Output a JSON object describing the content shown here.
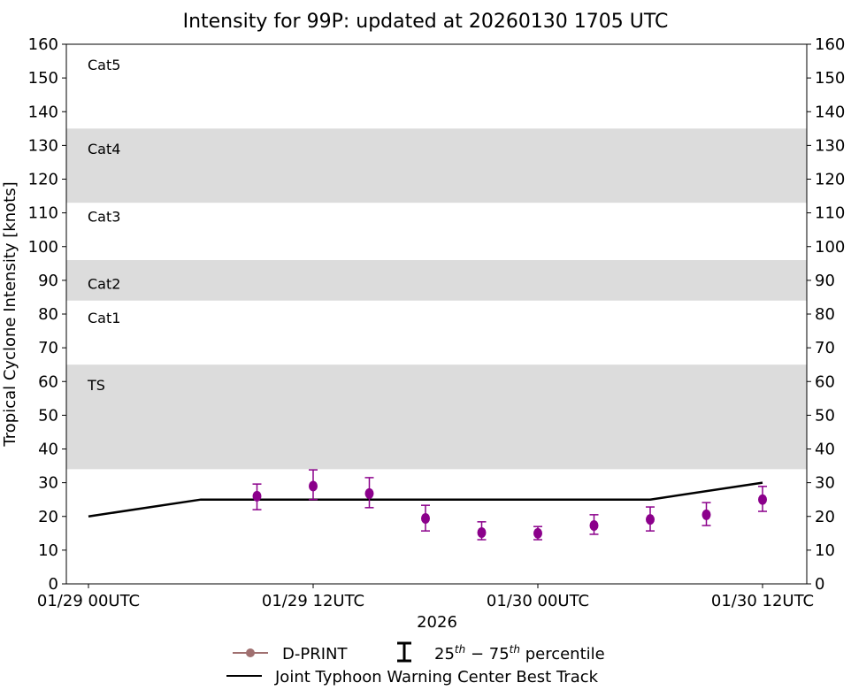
{
  "chart_data": {
    "type": "line",
    "title": "Intensity for 99P: updated at 20260130 1705 UTC",
    "xlabel": "2026",
    "ylabel": "Tropical Cyclone Intensity [knots]",
    "ylim": [
      0,
      160
    ],
    "yticks": [
      0,
      10,
      20,
      30,
      40,
      50,
      60,
      70,
      80,
      90,
      100,
      110,
      120,
      130,
      140,
      150,
      160
    ],
    "xlim_hours": [
      -6,
      38
    ],
    "xticks": [
      {
        "hour": 0,
        "label": "01/29 00UTC"
      },
      {
        "hour": 12,
        "label": "01/29 12UTC"
      },
      {
        "hour": 24,
        "label": "01/30 00UTC"
      },
      {
        "hour": 36,
        "label": "01/30 12UTC"
      }
    ],
    "grid": false,
    "bands": [
      {
        "from": 34,
        "to": 65,
        "color": "#dcdcdc"
      },
      {
        "from": 84,
        "to": 96,
        "color": "#dcdcdc"
      },
      {
        "from": 113,
        "to": 135,
        "color": "#dcdcdc"
      }
    ],
    "category_labels": [
      {
        "label": "Cat5",
        "y": 154
      },
      {
        "label": "Cat4",
        "y": 129
      },
      {
        "label": "Cat3",
        "y": 109
      },
      {
        "label": "Cat2",
        "y": 89
      },
      {
        "label": "Cat1",
        "y": 79
      },
      {
        "label": "TS",
        "y": 59
      }
    ],
    "series": [
      {
        "name": "Joint Typhoon Warning Center Best Track",
        "color": "#000000",
        "x_hours": [
          0,
          6,
          12,
          18,
          24,
          30,
          36
        ],
        "values": [
          20,
          25,
          25,
          25,
          25,
          25,
          30
        ]
      },
      {
        "name": "D-PRINT",
        "color": "#8b008b",
        "legend_color": "#a07070",
        "x_hours": [
          9,
          12,
          15,
          18,
          21,
          24,
          27,
          30,
          33,
          36
        ],
        "values": [
          26,
          29,
          26.8,
          19.4,
          15.2,
          15,
          17.3,
          19.1,
          20.5,
          25
        ],
        "p25": [
          22,
          25,
          22.6,
          15.7,
          13.1,
          13.1,
          14.7,
          15.7,
          17.3,
          21.5
        ],
        "p75": [
          29.6,
          33.8,
          31.5,
          23.3,
          18.4,
          17,
          20.5,
          22.8,
          24.1,
          28.9
        ]
      }
    ],
    "legend": {
      "placement": "bottom",
      "dprint": "D-PRINT",
      "percentile_base": "25",
      "percentile_sup1": "th",
      "percentile_mid": " − 75",
      "percentile_sup2": "th",
      "percentile_tail": " percentile",
      "best_track": "Joint Typhoon Warning Center Best Track"
    }
  }
}
